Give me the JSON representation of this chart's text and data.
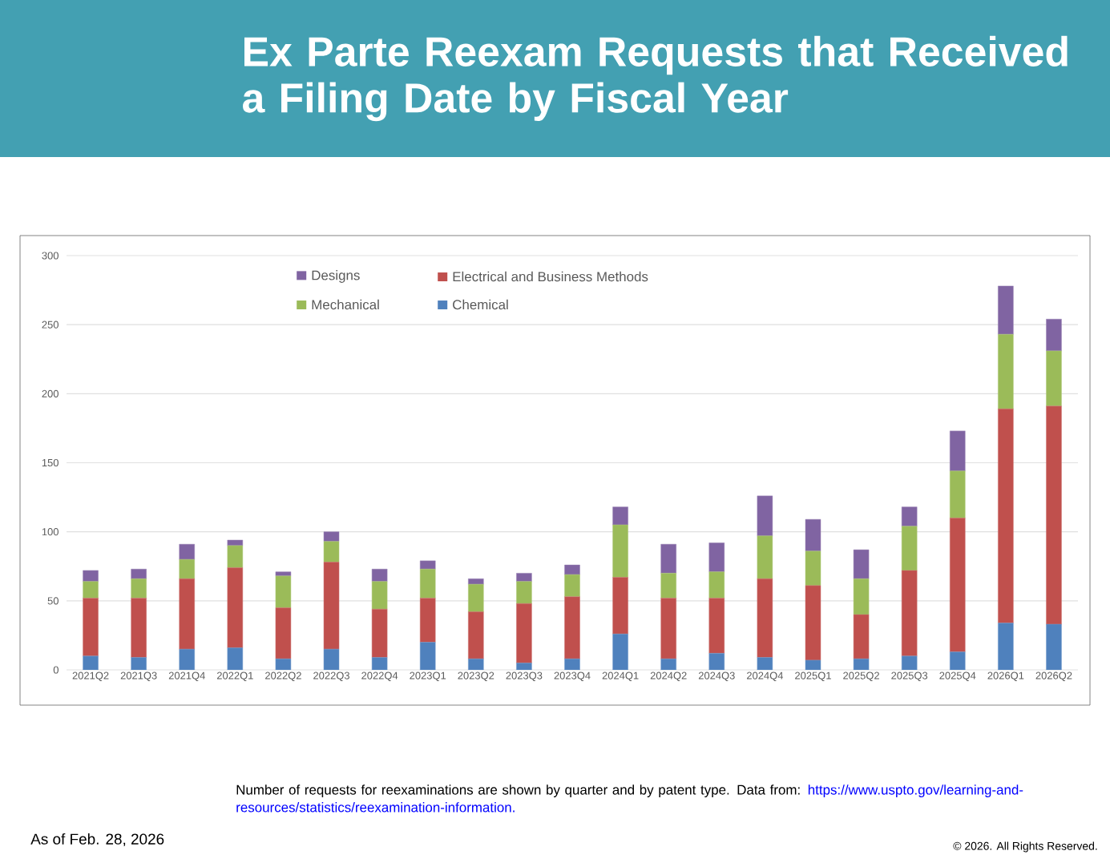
{
  "chart_data": {
    "type": "bar",
    "stacked": true,
    "title": "Ex Parte Reexam Requests that Received a Filing Date by Fiscal Year",
    "categories": [
      "2021Q2",
      "2021Q3",
      "2021Q4",
      "2022Q1",
      "2022Q2",
      "2022Q3",
      "2022Q4",
      "2023Q1",
      "2023Q2",
      "2023Q3",
      "2023Q4",
      "2024Q1",
      "2024Q2",
      "2024Q3",
      "2024Q4",
      "2025Q1",
      "2025Q2",
      "2025Q3",
      "2025Q4",
      "2026Q1",
      "2026Q2"
    ],
    "series": [
      {
        "name": "Chemical",
        "color": "#4f81bd",
        "values": [
          10,
          9,
          15,
          16,
          8,
          15,
          9,
          20,
          8,
          5,
          8,
          26,
          8,
          12,
          9,
          7,
          8,
          10,
          13,
          34,
          33
        ]
      },
      {
        "name": "Electrical and Business Methods",
        "color": "#c0504d",
        "values": [
          42,
          43,
          51,
          58,
          37,
          63,
          35,
          32,
          34,
          43,
          45,
          41,
          44,
          40,
          57,
          54,
          32,
          62,
          97,
          155,
          158
        ]
      },
      {
        "name": "Mechanical",
        "color": "#9bbb59",
        "values": [
          12,
          14,
          14,
          16,
          23,
          15,
          20,
          21,
          20,
          16,
          16,
          38,
          18,
          19,
          31,
          25,
          26,
          32,
          34,
          54,
          40
        ]
      },
      {
        "name": "Designs",
        "color": "#8064a2",
        "values": [
          8,
          7,
          11,
          4,
          3,
          7,
          9,
          6,
          4,
          6,
          7,
          13,
          21,
          21,
          29,
          23,
          21,
          14,
          29,
          35,
          23
        ]
      }
    ],
    "ylim": [
      0,
      300
    ],
    "yticks": [
      0,
      50,
      100,
      150,
      200,
      250,
      300
    ],
    "grid": "y",
    "legend": "top left",
    "annotations": [
      "Number of requests for reexaminations are shown by quarter and by patent type.  Data from:",
      "https://www.uspto.gov/learning-and-resources/statistics/reexamination-information.",
      "As of Feb. 28, 2026",
      "© 2026. All Rights Reserved."
    ]
  }
}
